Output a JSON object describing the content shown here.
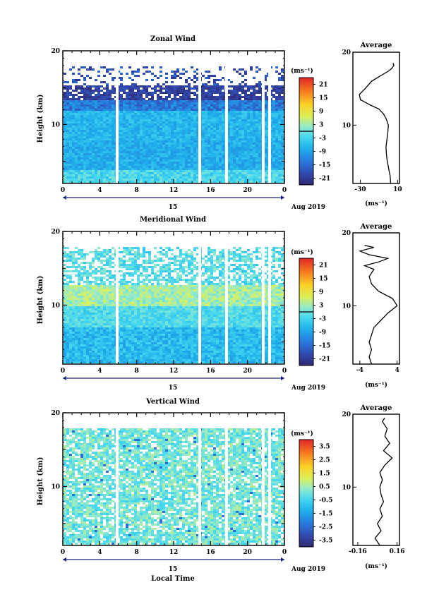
{
  "figure": {
    "xlabel": "Local Time",
    "date_label": "Aug 2019",
    "day_label": "15",
    "ylabel": "Height (km)",
    "unit_label": "(ms⁻¹)",
    "avg_title": "Average"
  },
  "chart_data": [
    {
      "type": "heatmap",
      "title": "Zonal Wind",
      "x_ticks": [
        "0",
        "4",
        "8",
        "12",
        "16",
        "20",
        "0"
      ],
      "xlim": [
        0,
        24
      ],
      "y_ticks": [
        "20",
        "10"
      ],
      "ylim": [
        2,
        20
      ],
      "colorbar_ticks": [
        "21",
        "15",
        "9",
        "3",
        "-3",
        "-9",
        "-15",
        "-21"
      ],
      "colorbar_range": [
        -24,
        24
      ],
      "avg_profile": {
        "title": "Average",
        "x_ticks": [
          "-30",
          "10"
        ],
        "xlim": [
          -38,
          12
        ],
        "xlabel": "(ms⁻¹)",
        "height": [
          2,
          3,
          4,
          5,
          6,
          7,
          8,
          9,
          10,
          10.8,
          11.5,
          12.2,
          12.8,
          13.5,
          14.2,
          15,
          16,
          16.8,
          17.4,
          17.8,
          18.2,
          18.5
        ],
        "value": [
          2.5,
          2,
          0.5,
          -1,
          -2,
          -2.5,
          -1.5,
          -0.5,
          0,
          -2,
          -5,
          -10,
          -20,
          -30,
          -31,
          -25,
          -18,
          -8,
          0,
          4,
          6,
          5
        ]
      }
    },
    {
      "type": "heatmap",
      "title": "Meridional Wind",
      "x_ticks": [
        "0",
        "4",
        "8",
        "12",
        "16",
        "20",
        "0"
      ],
      "xlim": [
        0,
        24
      ],
      "y_ticks": [
        "20",
        "10"
      ],
      "ylim": [
        2,
        20
      ],
      "colorbar_ticks": [
        "21",
        "15",
        "9",
        "3",
        "-3",
        "-9",
        "-15",
        "-21"
      ],
      "colorbar_range": [
        -24,
        24
      ],
      "avg_profile": {
        "title": "Average",
        "x_ticks": [
          "-4",
          "4"
        ],
        "xlim": [
          -5.5,
          4.5
        ],
        "xlabel": "(ms⁻¹)",
        "height": [
          2,
          3,
          4,
          5,
          6,
          7,
          8,
          9,
          10,
          11,
          12,
          13,
          14,
          15,
          15.5,
          16,
          16.5,
          17,
          17.5,
          18,
          18.3
        ],
        "value": [
          -1.5,
          -2,
          -1.5,
          -2,
          -1.5,
          -1,
          0.5,
          2,
          4,
          3,
          0,
          -1.5,
          -2,
          -1,
          -3,
          0,
          2,
          -2,
          -4,
          -1,
          -3
        ]
      }
    },
    {
      "type": "heatmap",
      "title": "Vertical Wind",
      "x_ticks": [
        "0",
        "4",
        "8",
        "12",
        "16",
        "20",
        "0"
      ],
      "xlim": [
        0,
        24
      ],
      "y_ticks": [
        "20",
        "10"
      ],
      "ylim": [
        2,
        20
      ],
      "colorbar_ticks": [
        "3.5",
        "2.5",
        "1.5",
        "0.5",
        "-0.5",
        "-1.5",
        "-2.5",
        "-3.5"
      ],
      "colorbar_range": [
        -4,
        4
      ],
      "avg_profile": {
        "title": "Average",
        "x_ticks": [
          "-0.16",
          "0.16"
        ],
        "xlim": [
          -0.2,
          0.18
        ],
        "xlabel": "(ms⁻¹)",
        "height": [
          2,
          3,
          4,
          5,
          6,
          7,
          8,
          9,
          10,
          11,
          12,
          13,
          14,
          15,
          16,
          17,
          18,
          19,
          19.5
        ],
        "value": [
          0.02,
          -0.02,
          0.03,
          0.0,
          0.04,
          0.02,
          0.05,
          0.03,
          0.02,
          0.04,
          0.02,
          0.06,
          0.12,
          0.05,
          0.1,
          0.06,
          0.08,
          0.04,
          0.06
        ]
      }
    }
  ]
}
